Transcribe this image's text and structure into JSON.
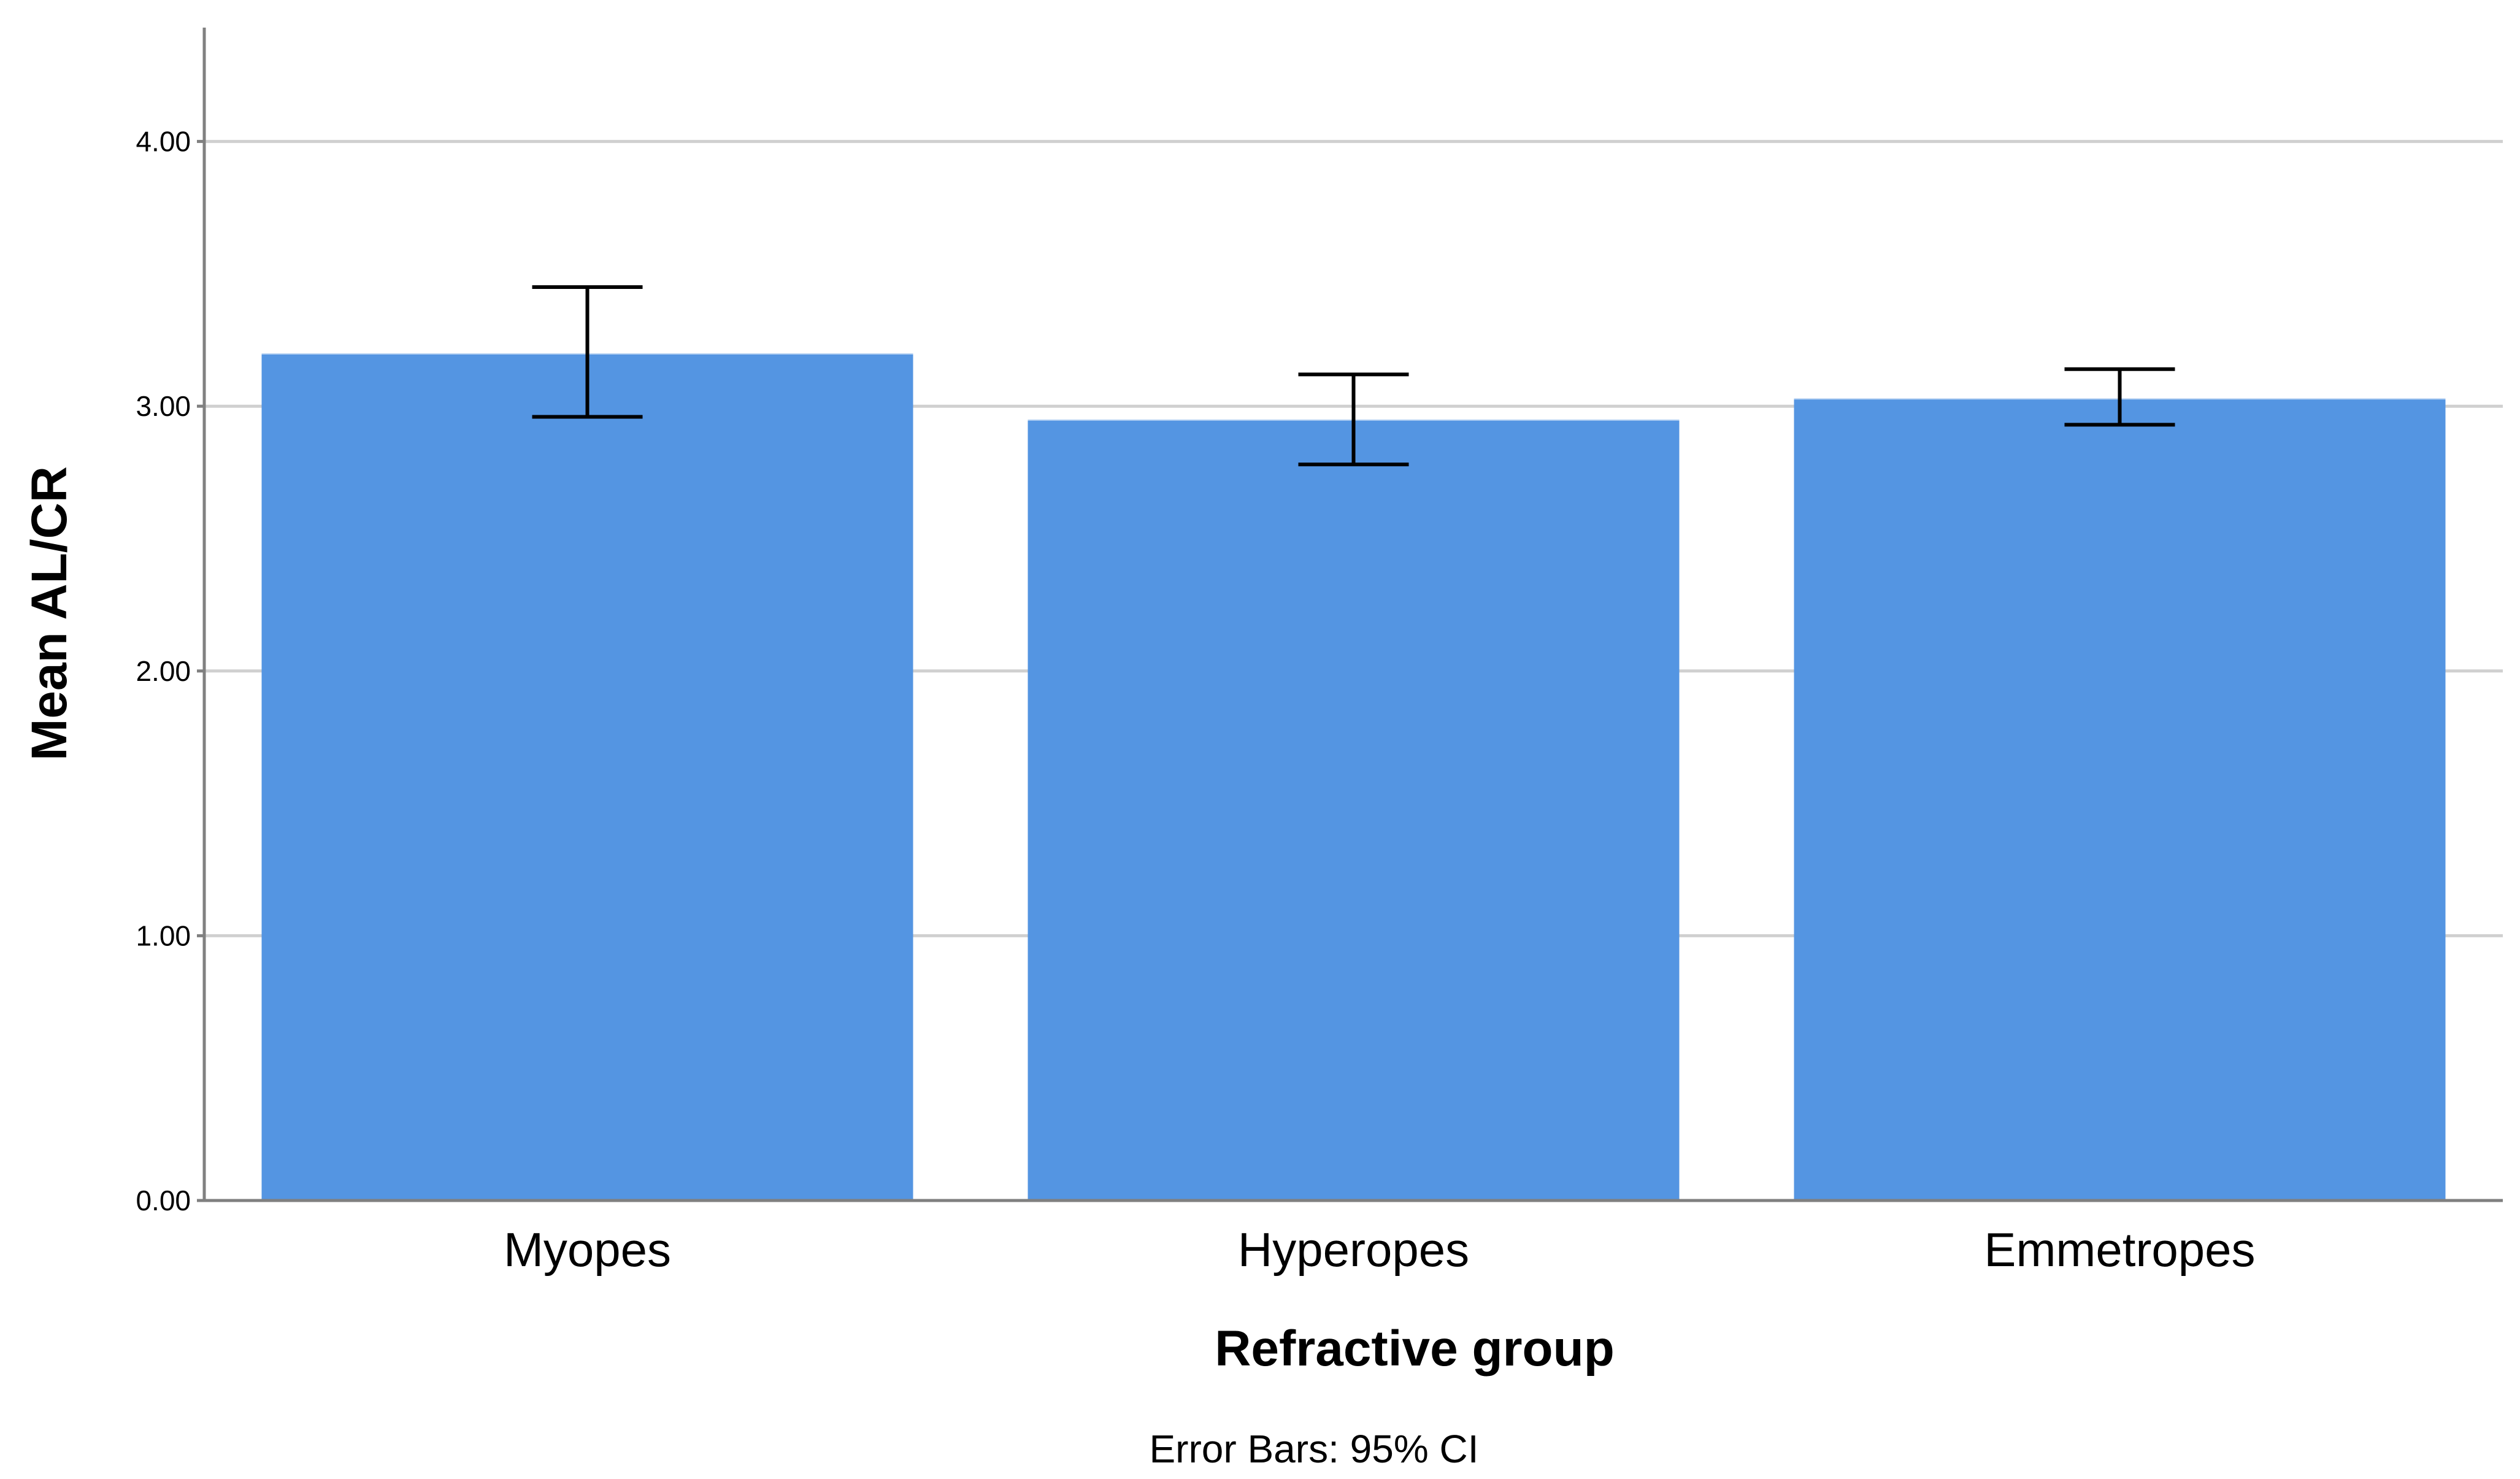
{
  "chart_data": {
    "type": "bar",
    "categories": [
      "Myopes",
      "Hyperopes",
      "Emmetropes"
    ],
    "values": [
      3.2,
      2.95,
      3.03
    ],
    "error_bars": [
      {
        "low": 2.96,
        "high": 3.45
      },
      {
        "low": 2.78,
        "high": 3.12
      },
      {
        "low": 2.93,
        "high": 3.14
      }
    ],
    "y_ticks": [
      "0.00",
      "1.00",
      "2.00",
      "3.00",
      "4.00"
    ],
    "ylim": [
      0,
      4.43
    ],
    "xlabel": "Refractive group",
    "ylabel": "Mean AL/CR",
    "footnote": "Error Bars: 95% CI",
    "grid": true,
    "bar_color": "#5495e2",
    "grid_color": "#d0d0d0",
    "axis_color": "#808080"
  }
}
